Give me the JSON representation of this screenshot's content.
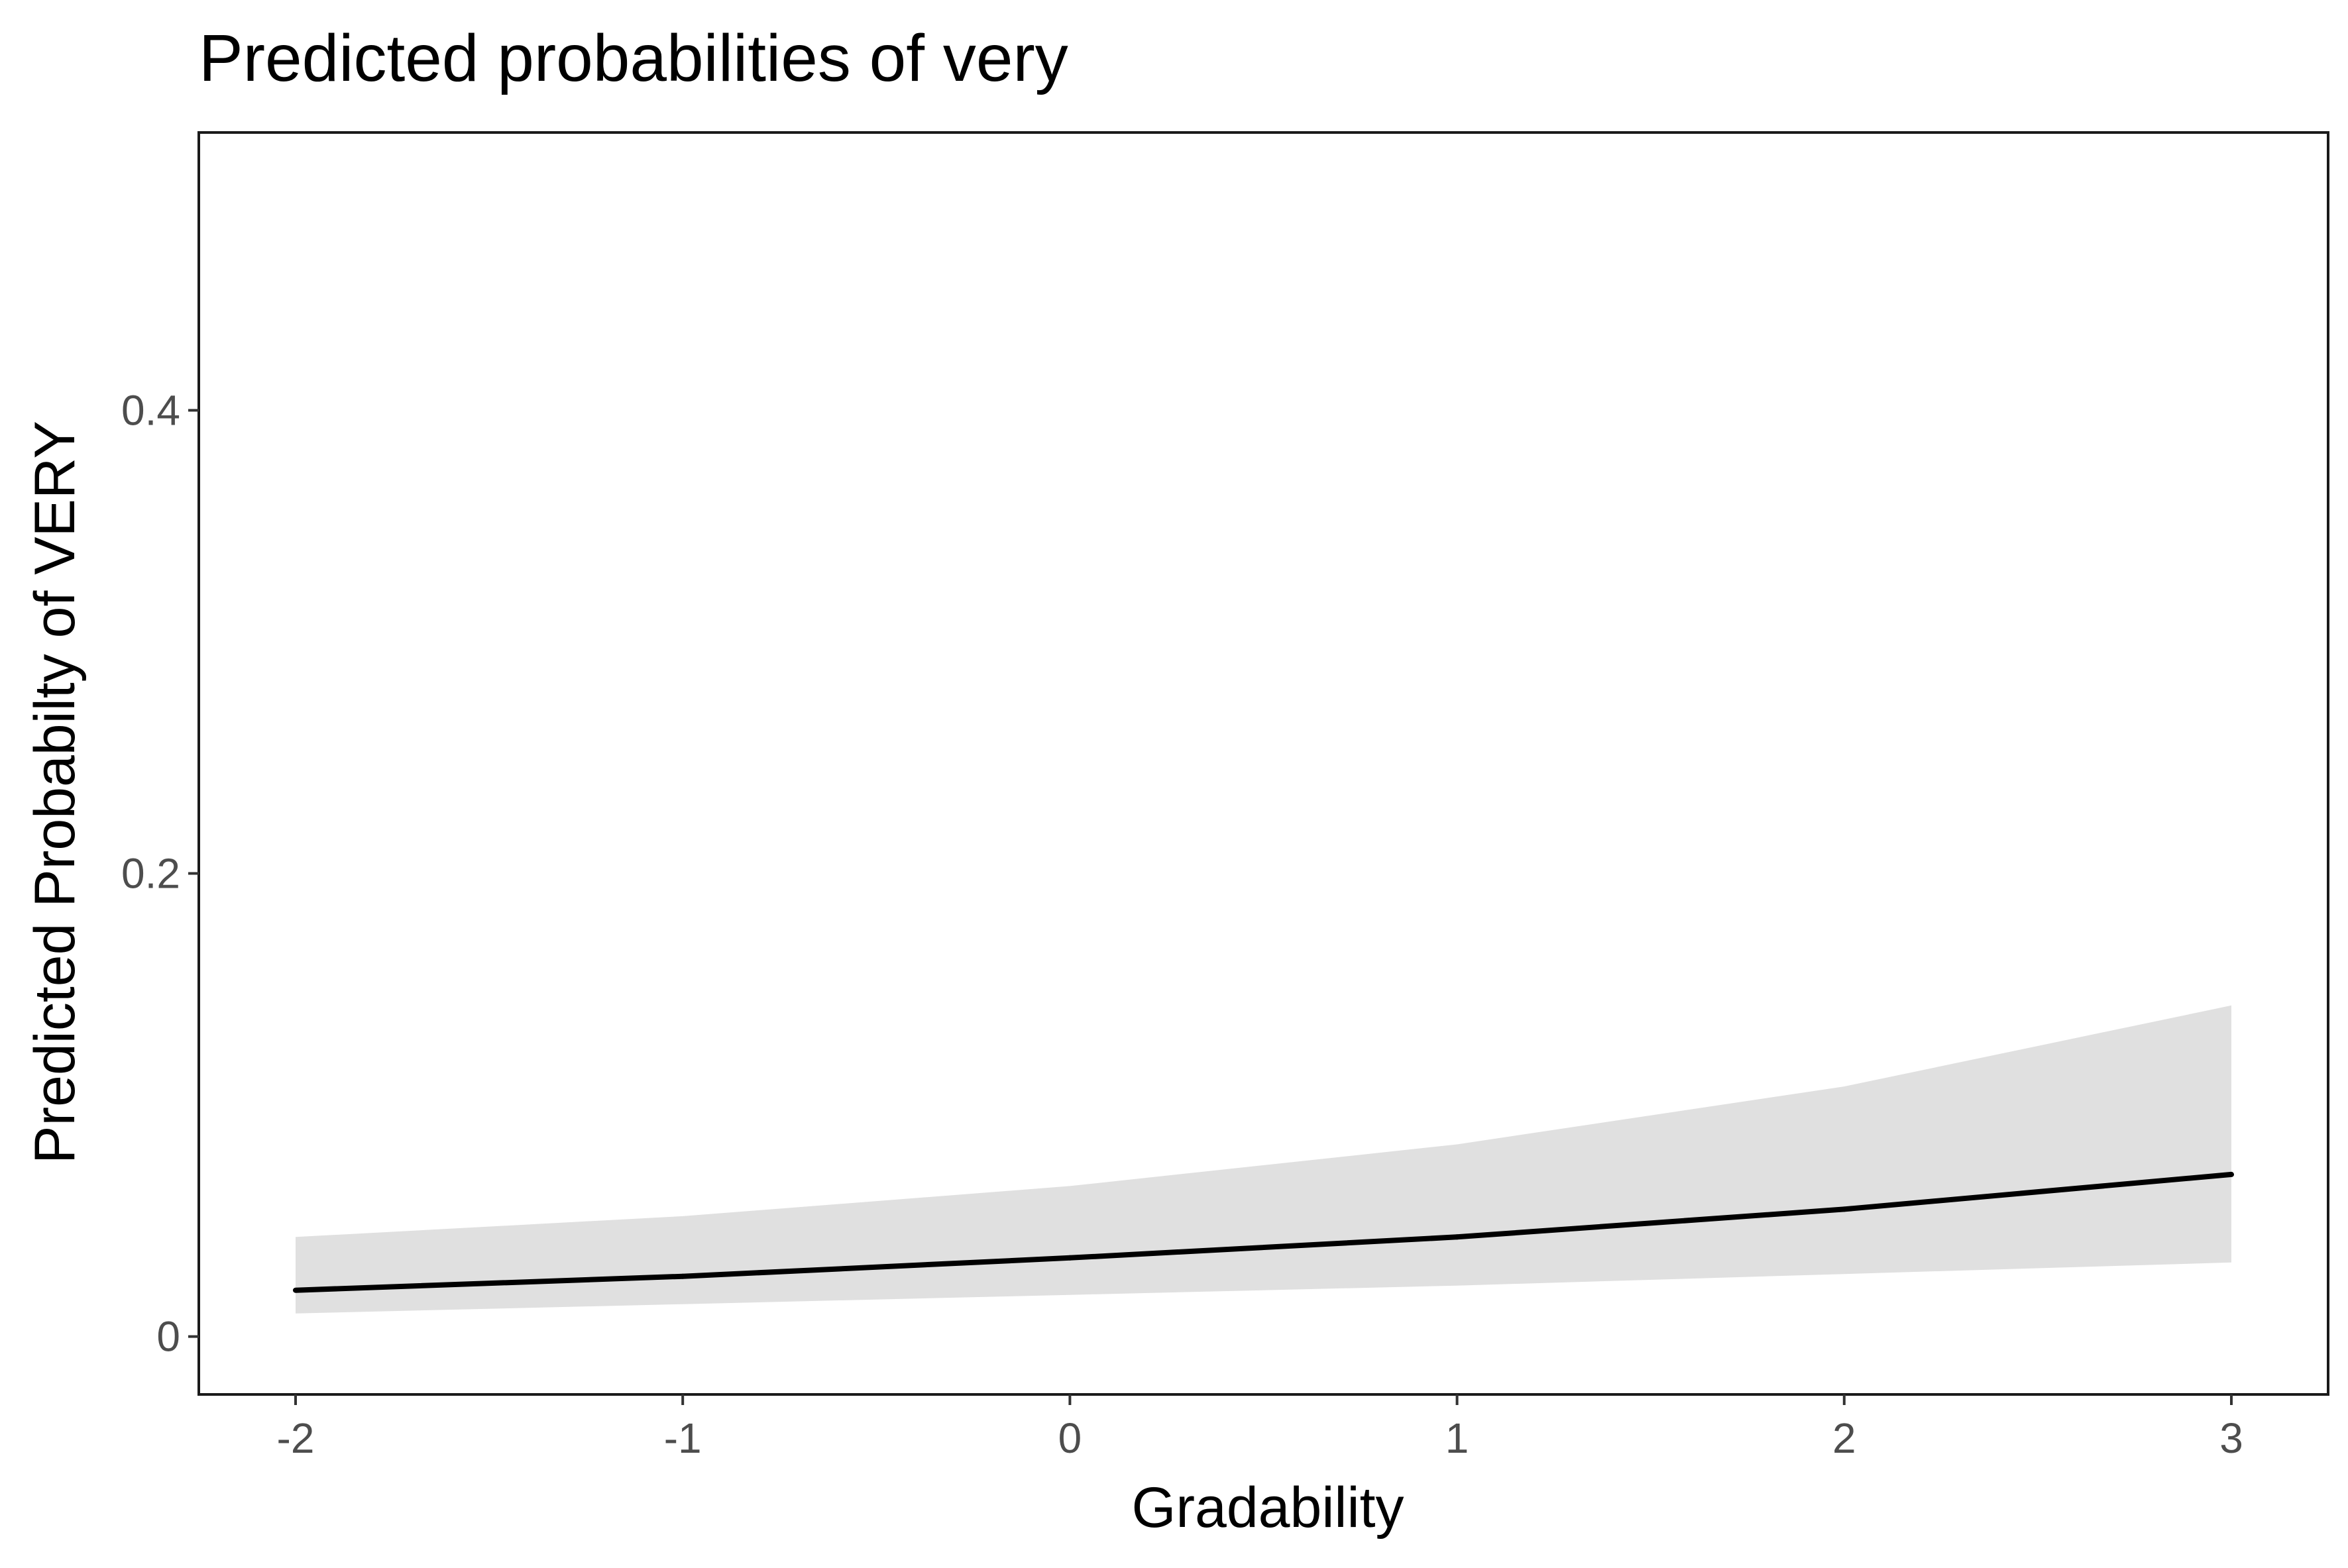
{
  "chart_data": {
    "type": "line",
    "title": "Predicted probabilities of very",
    "xlabel": "Gradability",
    "ylabel": "Predicted Probabilty of VERY",
    "x": [
      -2,
      -1,
      0,
      1,
      2,
      3
    ],
    "series": [
      {
        "values": [
          0.02,
          0.026,
          0.034,
          0.043,
          0.055,
          0.07
        ],
        "ci_lower": [
          0.01,
          0.014,
          0.018,
          0.022,
          0.027,
          0.032
        ],
        "ci_upper": [
          0.043,
          0.052,
          0.065,
          0.083,
          0.108,
          0.143
        ],
        "line_color": "#000000",
        "band_color": "#e0e0e0"
      }
    ],
    "xlim": [
      -2.25,
      3.25
    ],
    "ylim": [
      -0.025,
      0.52
    ],
    "x_ticks": [
      {
        "value": -2,
        "label": "-2"
      },
      {
        "value": -1,
        "label": "-1"
      },
      {
        "value": 0,
        "label": "0"
      },
      {
        "value": 1,
        "label": "1"
      },
      {
        "value": 2,
        "label": "2"
      },
      {
        "value": 3,
        "label": "3"
      }
    ],
    "y_ticks": [
      {
        "value": 0,
        "label": "0"
      },
      {
        "value": 0.2,
        "label": "0.2"
      },
      {
        "value": 0.4,
        "label": "0.4"
      }
    ],
    "grid": false,
    "legend": "none"
  }
}
